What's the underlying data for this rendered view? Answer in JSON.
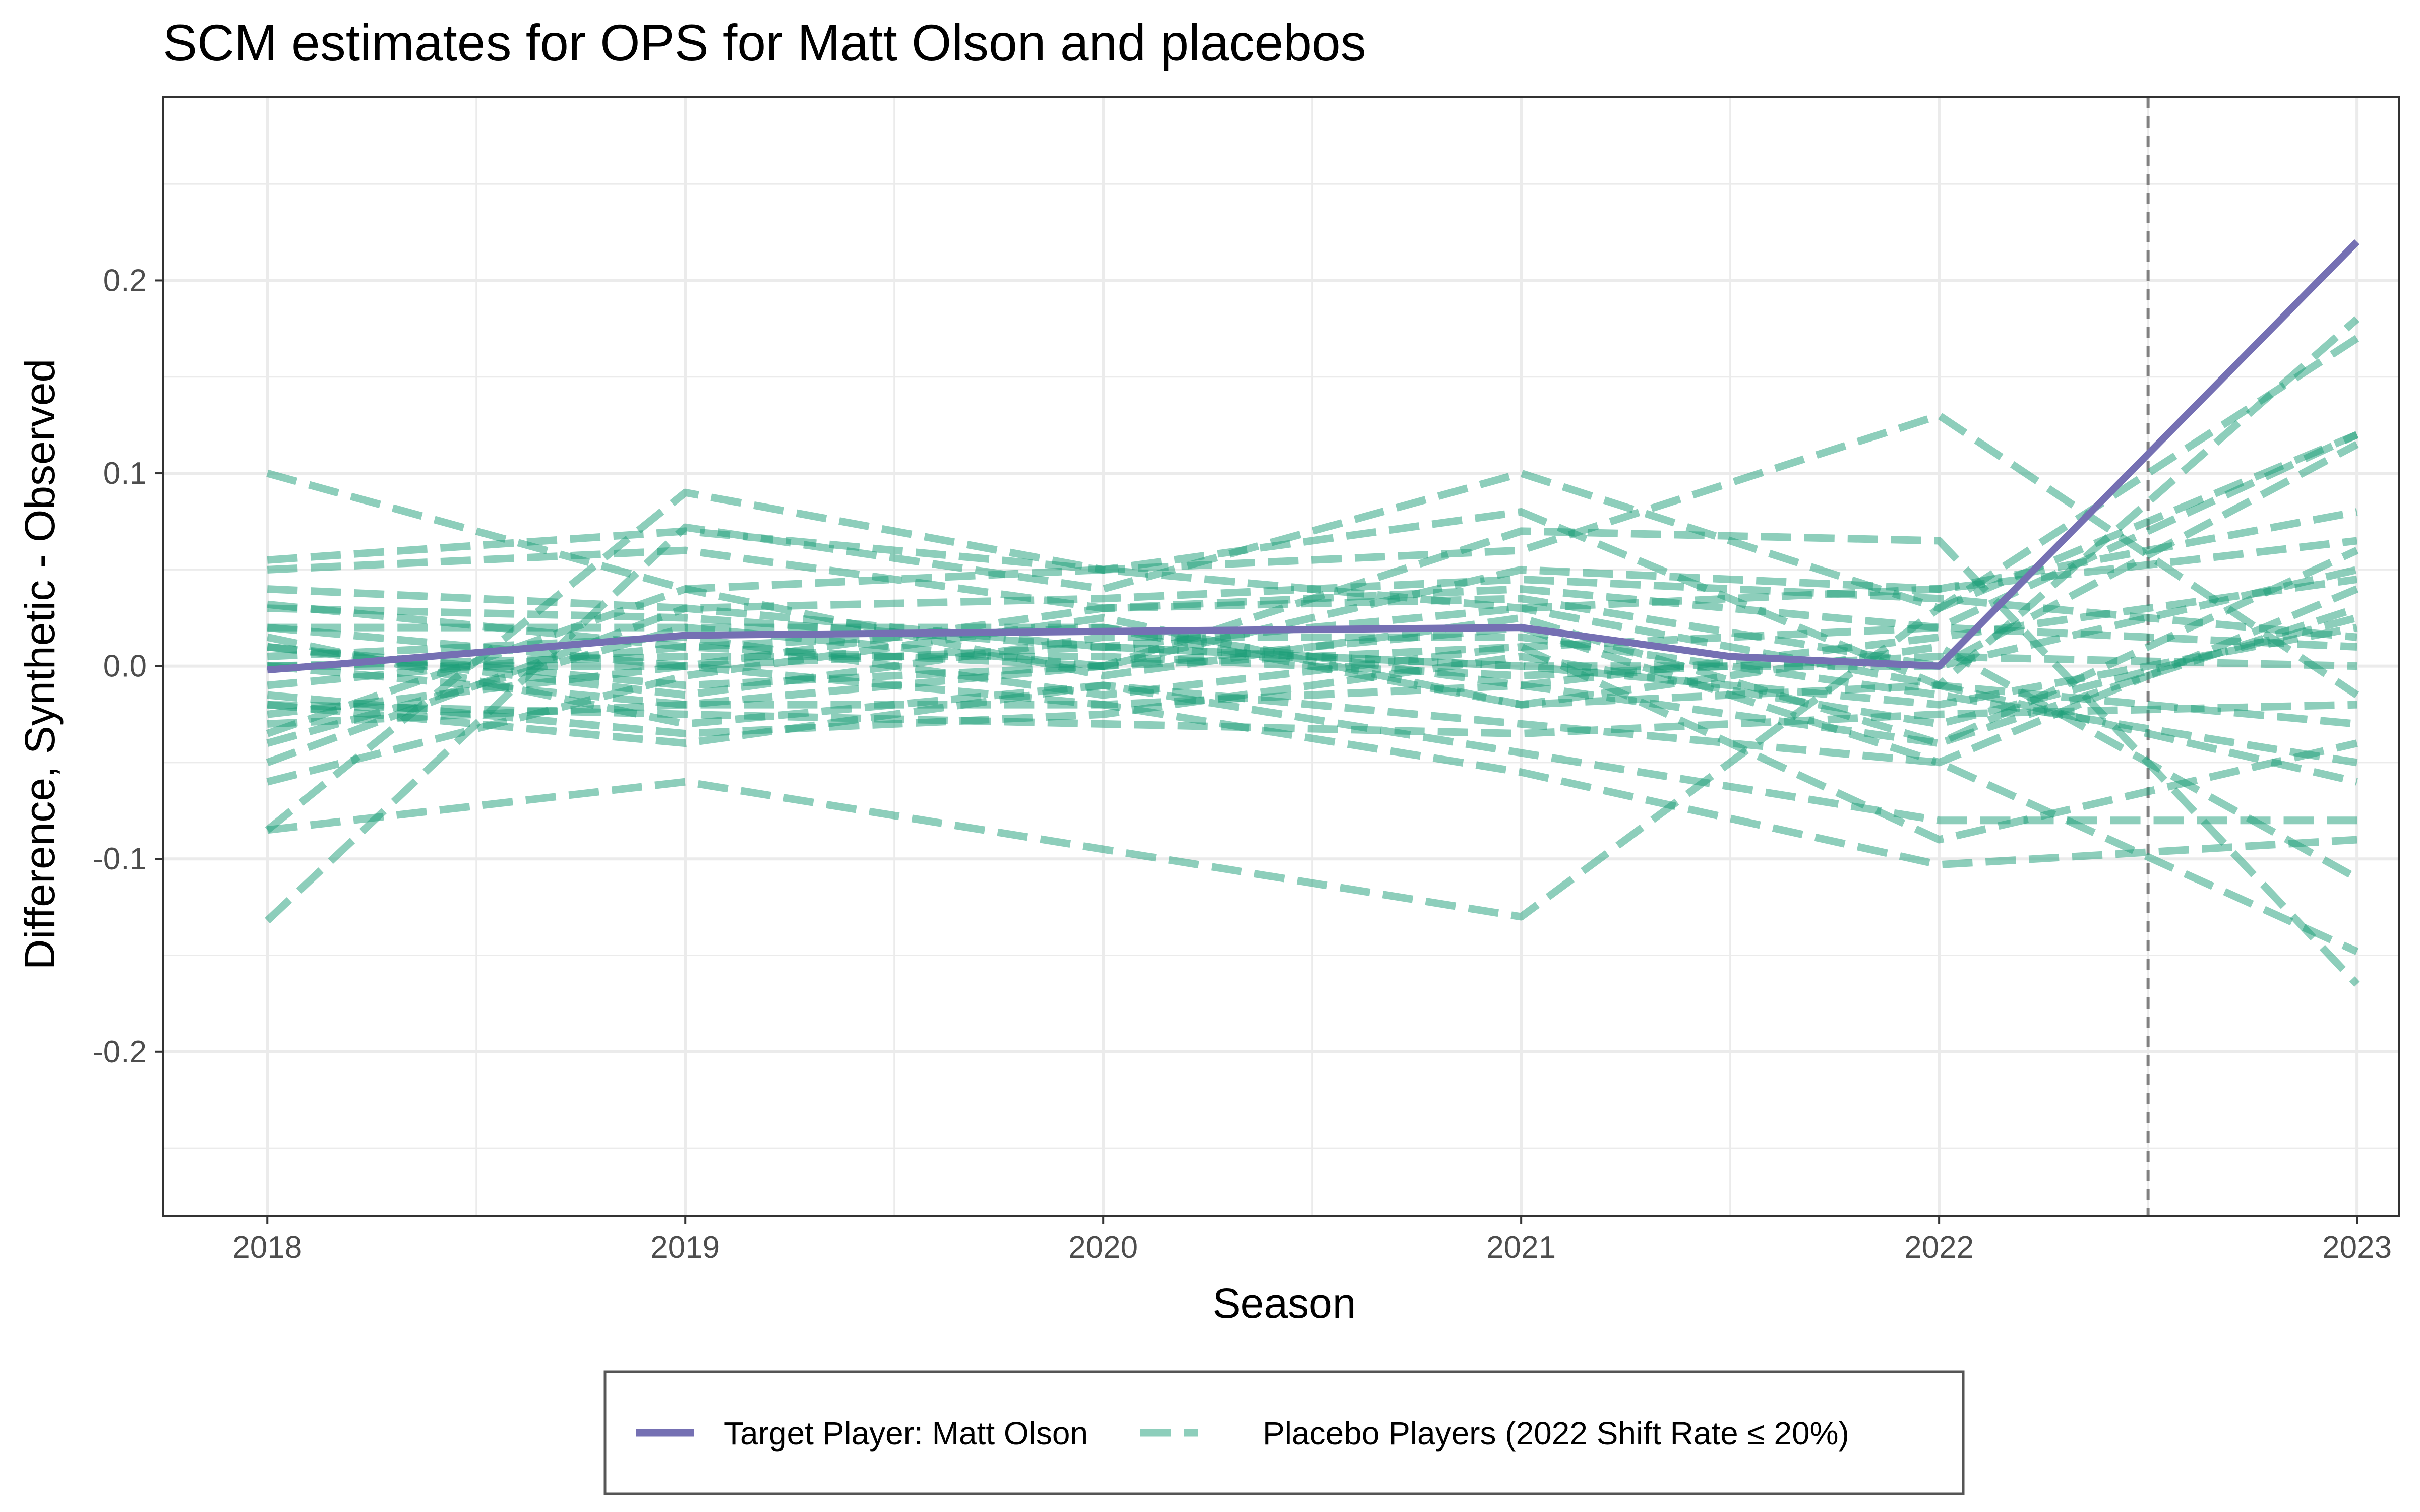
{
  "chart_data": {
    "type": "line",
    "title": "SCM estimates for OPS for Matt Olson and placebos",
    "xlabel": "Season",
    "ylabel": "Difference, Synthetic - Observed",
    "xlim": [
      2017.75,
      2023.1
    ],
    "ylim": [
      -0.285,
      0.295
    ],
    "x_ticks": [
      2018,
      2019,
      2020,
      2021,
      2022,
      2023
    ],
    "y_ticks": [
      -0.2,
      -0.1,
      0.0,
      0.1,
      0.2
    ],
    "y_tick_labels": [
      "-0.2",
      "-0.1",
      "0.0",
      "0.1",
      "0.2"
    ],
    "y_minor_ticks": [
      -0.25,
      -0.15,
      -0.05,
      0.05,
      0.15,
      0.25
    ],
    "grid": true,
    "treatment_line_x": 2022.5,
    "legend_position": "bottom",
    "colors": {
      "target": "#7570b3",
      "placebo": "#1b9e77",
      "treatment_line": "#808080",
      "grid": "#ebebeb",
      "panel_border": "#333333"
    },
    "x": [
      2018,
      2019,
      2020,
      2021,
      2022,
      2023
    ],
    "target": {
      "name": "Target Player: Matt Olson",
      "x": [
        2018,
        2019,
        2020,
        2021,
        2021.5,
        2022,
        2023
      ],
      "values": [
        -0.002,
        0.016,
        0.018,
        0.02,
        0.005,
        0.0,
        0.22
      ]
    },
    "placebo_legend": "Placebo Players (2022 Shift Rate ≤ 20%)",
    "placebos": [
      [
        0.1,
        0.04,
        0.05,
        0.03,
        -0.01,
        -0.06
      ],
      [
        0.055,
        0.07,
        0.05,
        0.08,
        -0.01,
        0.18
      ],
      [
        -0.132,
        0.072,
        0.04,
        0.1,
        0.03,
        0.12
      ],
      [
        -0.085,
        -0.06,
        -0.095,
        -0.13,
        0.03,
        0.17
      ],
      [
        -0.085,
        0.09,
        0.05,
        0.06,
        0.13,
        -0.015
      ],
      [
        0.032,
        0.01,
        0.0,
        0.07,
        0.065,
        -0.165
      ],
      [
        -0.03,
        -0.02,
        -0.02,
        -0.055,
        -0.103,
        -0.09
      ],
      [
        0.05,
        0.06,
        0.03,
        0.04,
        0.02,
        0.12
      ],
      [
        0.0,
        0.0,
        0.01,
        0.0,
        0.0,
        0.115
      ],
      [
        -0.02,
        -0.04,
        -0.01,
        -0.03,
        -0.05,
        -0.148
      ],
      [
        0.01,
        -0.01,
        0.0,
        0.01,
        -0.09,
        -0.04
      ],
      [
        -0.04,
        0.02,
        0.0,
        0.05,
        0.04,
        0.08
      ],
      [
        0.02,
        0.0,
        -0.02,
        -0.01,
        -0.04,
        0.06
      ],
      [
        -0.01,
        0.01,
        0.02,
        -0.02,
        0.01,
        -0.11
      ],
      [
        0.0,
        -0.02,
        0.0,
        0.02,
        -0.05,
        0.04
      ],
      [
        -0.05,
        0.03,
        0.01,
        0.0,
        -0.02,
        0.02
      ],
      [
        0.015,
        -0.03,
        -0.01,
        -0.045,
        -0.08,
        -0.08
      ],
      [
        -0.025,
        0.0,
        0.03,
        0.035,
        0.0,
        0.05
      ],
      [
        0.005,
        0.015,
        -0.015,
        0.01,
        0.02,
        0.01
      ],
      [
        -0.06,
        -0.005,
        0.025,
        -0.02,
        -0.01,
        -0.03
      ],
      [
        0.03,
        0.025,
        0.01,
        0.03,
        0.04,
        0.065
      ],
      [
        -0.015,
        -0.035,
        -0.025,
        0.005,
        -0.03,
        0.025
      ],
      [
        0.0,
        0.005,
        0.005,
        -0.005,
        0.005,
        0.0
      ],
      [
        0.01,
        -0.015,
        0.015,
        0.015,
        -0.015,
        -0.05
      ],
      [
        -0.035,
        0.04,
        -0.005,
        0.025,
        -0.04,
        0.03
      ],
      [
        0.02,
        0.02,
        0.02,
        -0.01,
        0.015,
        0.045
      ],
      [
        -0.02,
        -0.025,
        -0.03,
        -0.035,
        -0.025,
        -0.02
      ],
      [
        0.04,
        0.03,
        0.035,
        0.045,
        0.035,
        0.015
      ]
    ]
  }
}
